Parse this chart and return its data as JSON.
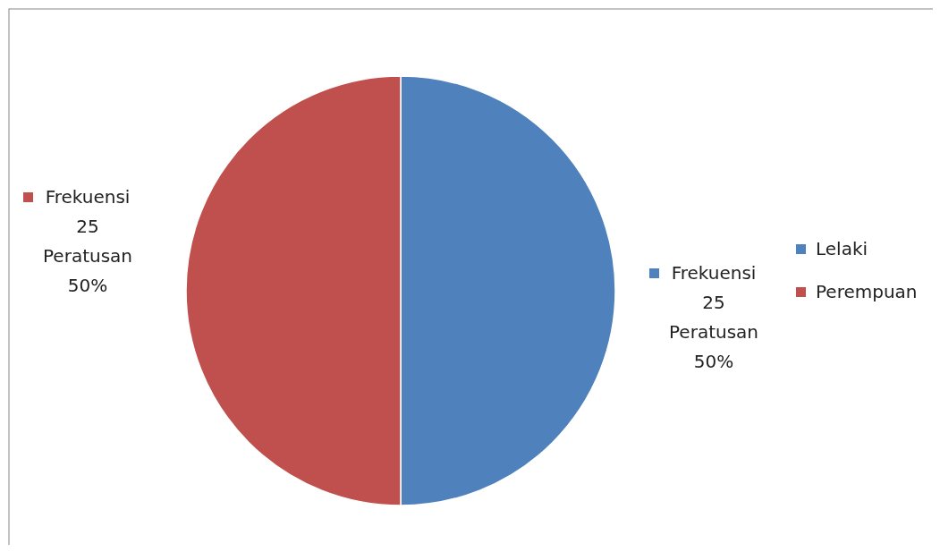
{
  "chart_data": {
    "type": "pie",
    "categories": [
      "Lelaki",
      "Perempuan"
    ],
    "values": [
      25,
      25
    ],
    "colors": [
      "#4f81bd",
      "#c0504d"
    ],
    "value_labels": [
      "Frekuensi\n25\nPeratusan\n50%",
      "Frekuensi\n25\nPeratusan\n50%"
    ],
    "legend": "right"
  }
}
